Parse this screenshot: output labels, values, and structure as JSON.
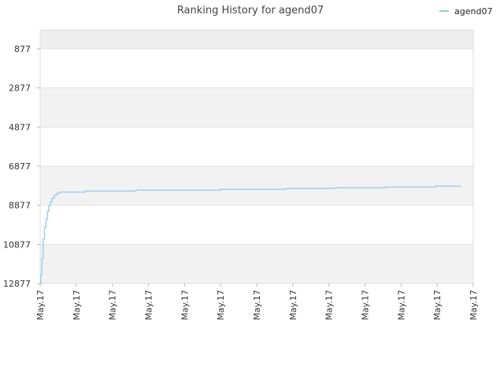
{
  "chart_data": {
    "type": "line",
    "title": "Ranking History for agend07",
    "xlabel": "",
    "ylabel": "",
    "y_inverted": true,
    "ylim": [
      12877,
      0
    ],
    "y_ticks": [
      {
        "value": 877,
        "label": "877"
      },
      {
        "value": 2877,
        "label": "2877"
      },
      {
        "value": 4877,
        "label": "4877"
      },
      {
        "value": 6877,
        "label": "6877"
      },
      {
        "value": 8877,
        "label": "8877"
      },
      {
        "value": 10877,
        "label": "10877"
      },
      {
        "value": 12877,
        "label": "12877"
      }
    ],
    "x_tick_labels": [
      "May.17",
      "May.17",
      "May.17",
      "May.17",
      "May.17",
      "May.17",
      "May.17",
      "May.17",
      "May.17",
      "May.17",
      "May.17",
      "May.17",
      "May.17"
    ],
    "x_range": [
      0,
      12
    ],
    "grid": true,
    "legend_position": "top-right",
    "series": [
      {
        "name": "agend07",
        "color": "#99ccee",
        "x": [
          0.0,
          0.02,
          0.05,
          0.08,
          0.12,
          0.16,
          0.2,
          0.24,
          0.28,
          0.33,
          0.4,
          0.47,
          0.55,
          1.0,
          1.25,
          2.0,
          2.65,
          3.0,
          4.0,
          5.0,
          5.4,
          6.0,
          6.8,
          7.0,
          8.0,
          8.2,
          9.0,
          9.55,
          10.0,
          10.95,
          11.65
        ],
        "values": [
          12877,
          12400,
          11600,
          10600,
          10000,
          9600,
          9200,
          8900,
          8700,
          8500,
          8350,
          8250,
          8200,
          8200,
          8150,
          8150,
          8100,
          8100,
          8100,
          8060,
          8060,
          8060,
          8020,
          8020,
          8000,
          7980,
          7980,
          7950,
          7950,
          7900,
          7900
        ]
      }
    ]
  }
}
